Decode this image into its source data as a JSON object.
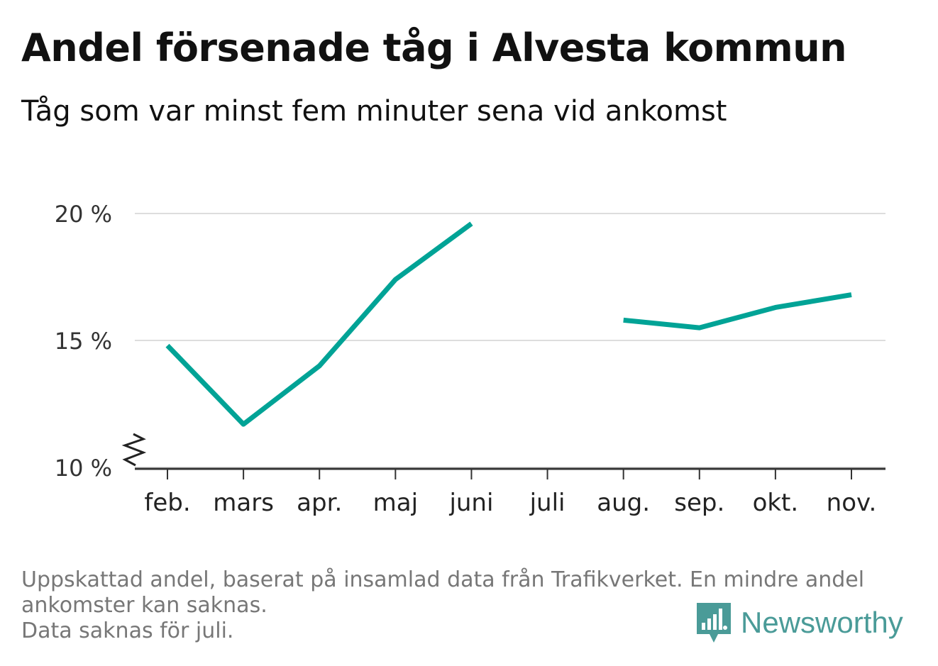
{
  "title": "Andel försenade tåg i Alvesta kommun",
  "subtitle": "Tåg som var minst fem minuter sena vid ankomst",
  "chart_data": {
    "type": "line",
    "categories": [
      "feb.",
      "mars",
      "apr.",
      "maj",
      "juni",
      "juli",
      "aug.",
      "sep.",
      "okt.",
      "nov."
    ],
    "series": [
      {
        "values": [
          14.8,
          11.7,
          14.0,
          17.4,
          19.6,
          null,
          15.8,
          15.5,
          16.3,
          16.8
        ]
      }
    ],
    "yticks": [
      10,
      15,
      20
    ],
    "ytick_labels": [
      "10 %",
      "15 %",
      "20 %"
    ],
    "ylim": [
      10,
      20
    ],
    "y_axis_break": true,
    "grid": true,
    "line_color": "#00a396"
  },
  "footer": {
    "note_line1": "Uppskattad andel, baserat på insamlad data från Trafikverket. En mindre andel",
    "note_line2": "ankomster kan saknas.",
    "note_line3": "Data saknas för juli."
  },
  "brand": {
    "name": "Newsworthy",
    "logo_icon": "newsworthy-logo-icon",
    "color": "#4a9b98"
  }
}
